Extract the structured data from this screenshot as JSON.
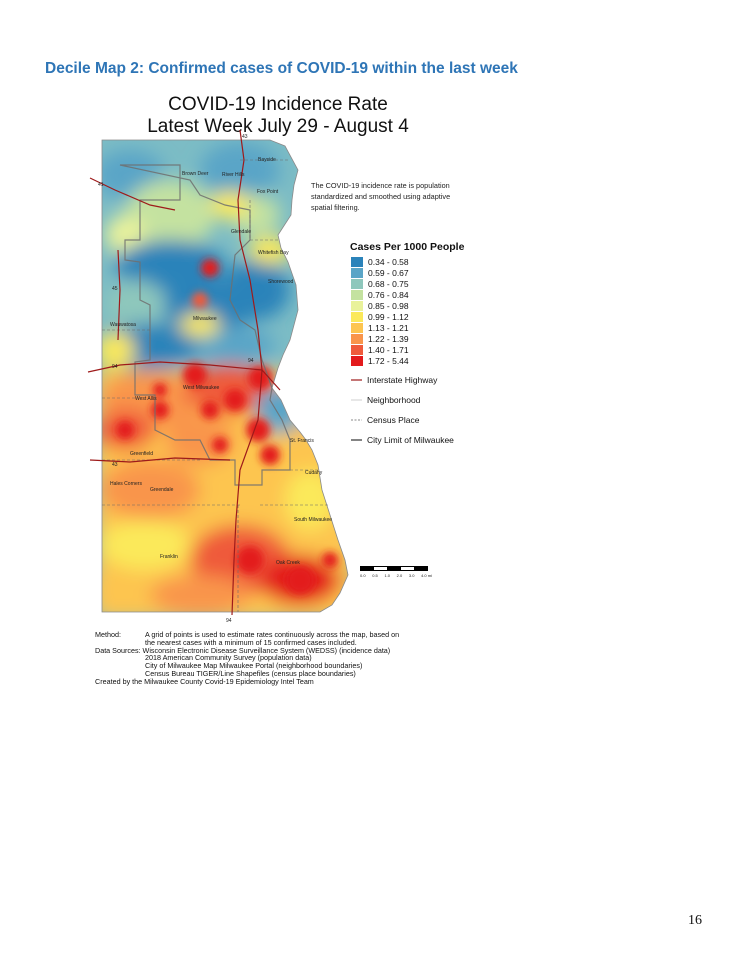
{
  "heading": "Decile Map 2: Confirmed cases of COVID-19 within the last week",
  "map": {
    "title": "COVID-19 Incidence Rate",
    "subtitle": "Latest Week July 29 - August 4",
    "note": "The COVID-19 incidence rate is population standardized and smoothed using adaptive spatial filtering.",
    "legend": {
      "title": "Cases Per 1000 People",
      "classes": [
        {
          "label": "0.34 - 0.58",
          "color": "#2b83ba"
        },
        {
          "label": "0.59 - 0.67",
          "color": "#5aa5c7"
        },
        {
          "label": "0.68 - 0.75",
          "color": "#8ec7bc"
        },
        {
          "label": "0.76 - 0.84",
          "color": "#c4e2a0"
        },
        {
          "label": "0.85 - 0.98",
          "color": "#e9f29b"
        },
        {
          "label": "0.99 - 1.12",
          "color": "#fbe95a"
        },
        {
          "label": "1.13 - 1.21",
          "color": "#fdc550"
        },
        {
          "label": "1.22 - 1.39",
          "color": "#f9954b"
        },
        {
          "label": "1.40 - 1.71",
          "color": "#ef5a3b"
        },
        {
          "label": "1.72 - 5.44",
          "color": "#e31a1c"
        }
      ],
      "lines": [
        {
          "label": "Interstate Highway",
          "color": "#9e1a1a"
        },
        {
          "label": "Neighborhood",
          "color": "#cfcfcf"
        },
        {
          "label": "Census Place",
          "color": "#888888"
        },
        {
          "label": "City Limit of Milwaukee",
          "color": "#666666"
        }
      ]
    },
    "places": [
      "Bayside",
      "Brown Deer",
      "River Hills",
      "Fox Point",
      "Glendale",
      "Whitefish Bay",
      "Shorewood",
      "Milwaukee",
      "Wauwatosa",
      "West Milwaukee",
      "West Allis",
      "St. Francis",
      "Greenfield",
      "Hales Corners",
      "Greendale",
      "Cudahy",
      "South Milwaukee",
      "Franklin",
      "Oak Creek"
    ],
    "highways": [
      "43",
      "41",
      "45",
      "94",
      "94",
      "43",
      "94"
    ],
    "scale": {
      "ticks": [
        "0.0",
        "0.5",
        "1.0",
        "2.0",
        "3.0",
        "4.0 mi"
      ]
    },
    "footer": {
      "method_key": "Method:",
      "method_text": "A grid of points is used to estimate rates continuously across the map, based on",
      "method_text2": "the nearest cases with a minimum of 15 confirmed cases included.",
      "sources_key": "Data Sources:",
      "sources": [
        "Wisconsin Electronic Disease Surveillance System (WEDSS) (incidence data)",
        "2018 American Community Survey (population data)",
        "City of Milwaukee Map Milwaukee Portal (neighborhood boundaries)",
        "Census Bureau TIGER/Line Shapefiles (census place boundaries)"
      ],
      "credit": "Created by the Milwaukee County Covid-19 Epidemiology Intel Team"
    }
  },
  "page_number": "16"
}
